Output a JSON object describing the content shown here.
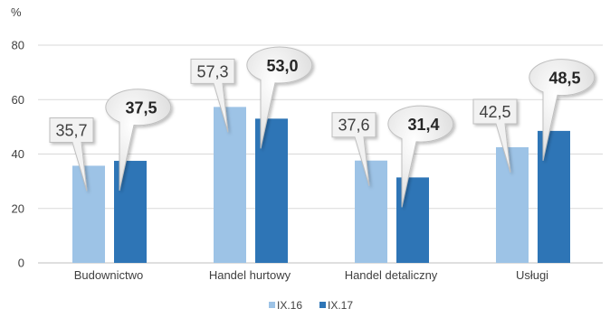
{
  "chart_data": {
    "type": "bar",
    "ylabel": "%",
    "ylim": [
      0,
      80
    ],
    "yticks": [
      "0",
      "20",
      "40",
      "60",
      "80"
    ],
    "grid": true,
    "legend_position": "bottom",
    "categories": [
      "Budownictwo",
      "Handel hurtowy",
      "Handel detaliczny",
      "Usługi"
    ],
    "series": [
      {
        "name": "IX.16",
        "color": "#9DC3E6",
        "values": [
          35.7,
          57.3,
          37.6,
          42.5
        ],
        "labels": [
          "35,7",
          "57,3",
          "37,6",
          "42,5"
        ]
      },
      {
        "name": "IX.17",
        "color": "#2E75B6",
        "values": [
          37.5,
          53.0,
          31.4,
          48.5
        ],
        "labels": [
          "37,5",
          "53,0",
          "31,4",
          "48,5"
        ]
      }
    ]
  }
}
